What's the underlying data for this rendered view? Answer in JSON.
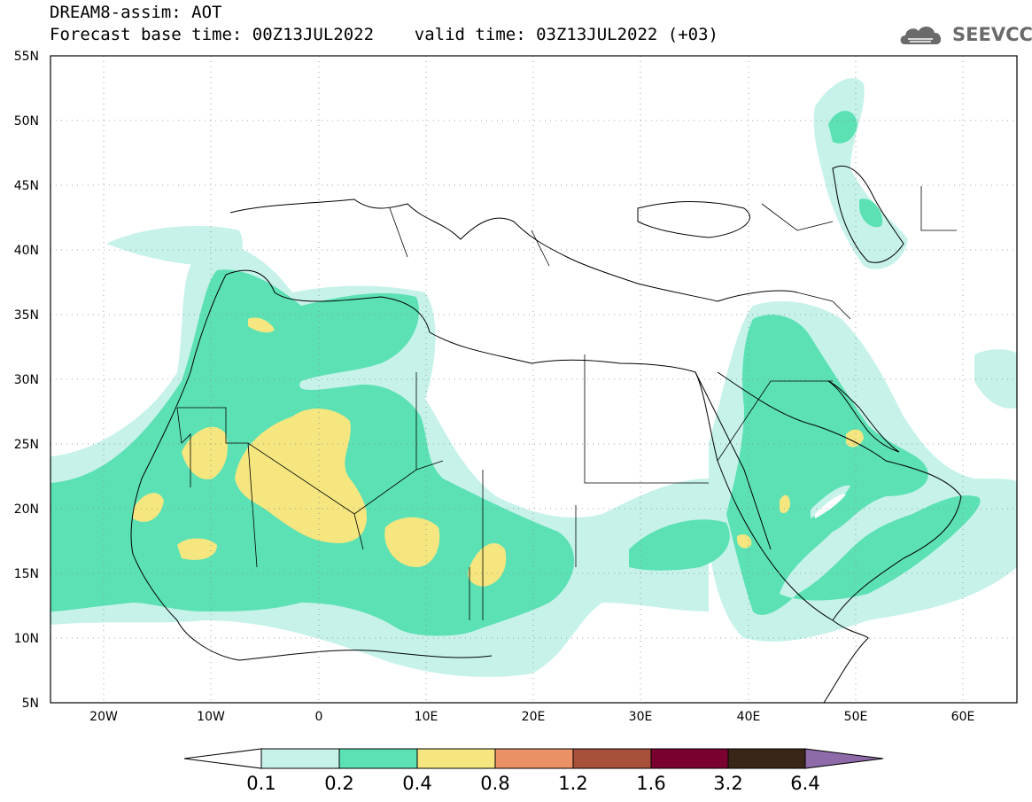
{
  "header": {
    "line1": "DREAM8-assim: AOT",
    "line2": "Forecast base time: 00Z13JUL2022    valid time: 03Z13JUL2022 (+03)"
  },
  "logo": {
    "text": "SEEVCCC",
    "icon": "cloud-icon"
  },
  "map": {
    "lon_range": [
      -25,
      65
    ],
    "lat_range": [
      5,
      55
    ],
    "lat_ticks": [
      "55N",
      "50N",
      "45N",
      "40N",
      "35N",
      "30N",
      "25N",
      "20N",
      "15N",
      "10N",
      "5N"
    ],
    "lon_ticks": [
      "20W",
      "10W",
      "0",
      "10E",
      "20E",
      "30E",
      "40E",
      "50E",
      "60E"
    ]
  },
  "colorbar": {
    "labels": [
      "0.1",
      "0.2",
      "0.4",
      "0.8",
      "1.2",
      "1.6",
      "3.2",
      "6.4"
    ],
    "colors": [
      "#ffffff",
      "#c6f2ea",
      "#5ce1b4",
      "#f5e680",
      "#eb9166",
      "#a8503a",
      "#7a0030",
      "#3a2618",
      "#8e6aa8"
    ]
  }
}
